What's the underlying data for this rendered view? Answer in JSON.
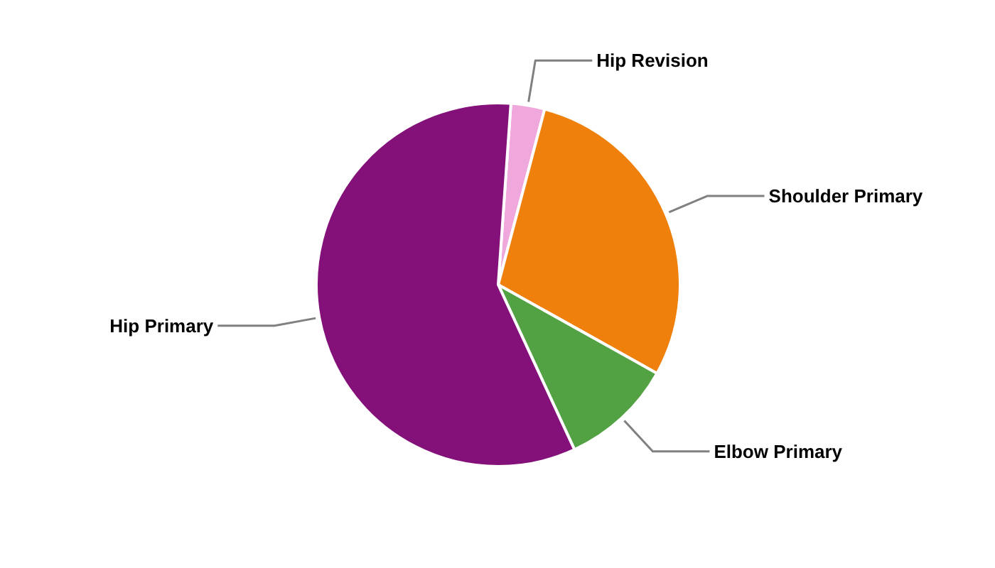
{
  "chart_data": {
    "type": "pie",
    "categories": [
      "Hip Revision",
      "Shoulder Primary",
      "Elbow Primary",
      "Hip Primary"
    ],
    "values": [
      3,
      29,
      10,
      58
    ],
    "colors": [
      "#f0a8dc",
      "#f0800c",
      "#52a244",
      "#84117a"
    ]
  }
}
